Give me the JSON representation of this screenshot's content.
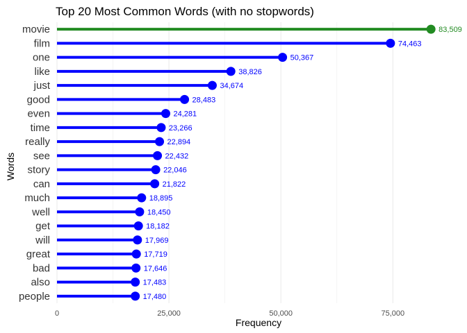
{
  "chart_data": {
    "type": "lollipop",
    "title": "Top 20 Most Common Words (with no stopwords)",
    "xlabel": "Frequency",
    "ylabel": "Words",
    "xlim": [
      0,
      90000
    ],
    "x_ticks": [
      0,
      25000,
      50000,
      75000
    ],
    "x_tick_labels": [
      "0",
      "25,000",
      "50,000",
      "75,000"
    ],
    "grid": true,
    "colors": {
      "highlight": "#228B22",
      "default": "#0000FF",
      "grid": "#ebebeb"
    },
    "categories": [
      "movie",
      "film",
      "one",
      "like",
      "just",
      "good",
      "even",
      "time",
      "really",
      "see",
      "story",
      "can",
      "much",
      "well",
      "get",
      "will",
      "great",
      "bad",
      "also",
      "people"
    ],
    "values": [
      83509,
      74463,
      50367,
      38826,
      34674,
      28483,
      24281,
      23266,
      22894,
      22432,
      22046,
      21822,
      18895,
      18450,
      18182,
      17969,
      17719,
      17646,
      17483,
      17480
    ],
    "value_labels": [
      "83,509",
      "74,463",
      "50,367",
      "38,826",
      "34,674",
      "28,483",
      "24,281",
      "23,266",
      "22,894",
      "22,432",
      "22,046",
      "21,822",
      "18,895",
      "18,450",
      "18,182",
      "17,969",
      "17,719",
      "17,646",
      "17,483",
      "17,480"
    ],
    "highlight_index": 0
  }
}
